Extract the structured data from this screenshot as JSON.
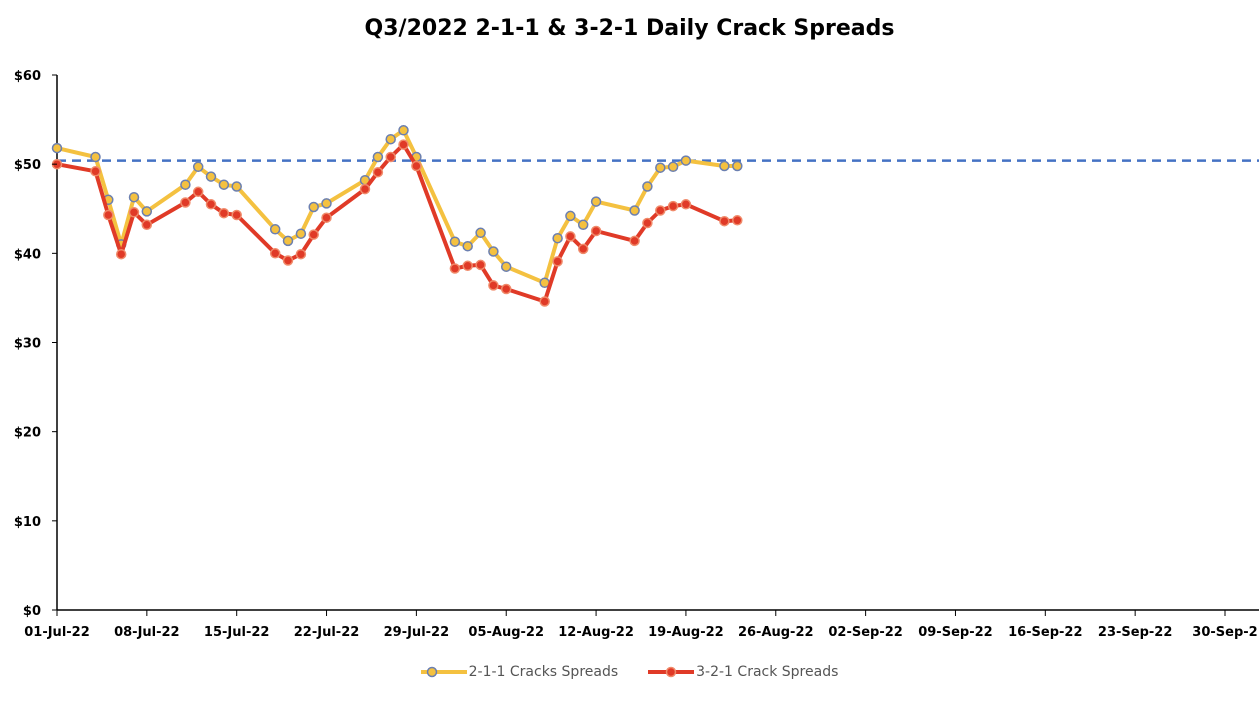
{
  "chart_data": {
    "type": "line",
    "title": "Q3/2022 2-1-1 & 3-2-1 Daily Crack Spreads",
    "xlabel": "",
    "ylabel": "",
    "ylim": [
      0,
      60
    ],
    "xlim": [
      "2022-07-01",
      "2022-09-30"
    ],
    "y_ticks": [
      "$0",
      "$10",
      "$20",
      "$30",
      "$40",
      "$50",
      "$60"
    ],
    "x_ticks": [
      {
        "date": "2022-07-01",
        "label": "01-Jul-22"
      },
      {
        "date": "2022-07-08",
        "label": "08-Jul-22"
      },
      {
        "date": "2022-07-15",
        "label": "15-Jul-22"
      },
      {
        "date": "2022-07-22",
        "label": "22-Jul-22"
      },
      {
        "date": "2022-07-29",
        "label": "29-Jul-22"
      },
      {
        "date": "2022-08-05",
        "label": "05-Aug-22"
      },
      {
        "date": "2022-08-12",
        "label": "12-Aug-22"
      },
      {
        "date": "2022-08-19",
        "label": "19-Aug-22"
      },
      {
        "date": "2022-08-26",
        "label": "26-Aug-22"
      },
      {
        "date": "2022-09-02",
        "label": "02-Sep-22"
      },
      {
        "date": "2022-09-09",
        "label": "09-Sep-22"
      },
      {
        "date": "2022-09-16",
        "label": "16-Sep-22"
      },
      {
        "date": "2022-09-23",
        "label": "23-Sep-22"
      },
      {
        "date": "2022-09-30",
        "label": "30-Sep-2"
      }
    ],
    "reference_line": {
      "value": 50.4,
      "color": "#4472c4",
      "style": "dashed"
    },
    "grid": false,
    "legend_position": "bottom",
    "series": [
      {
        "name": "2-1-1 Cracks Spreads",
        "color": "#f4c140",
        "marker_color": "#6b7fb0",
        "points": [
          [
            "2022-07-01",
            51.8
          ],
          [
            "2022-07-04",
            50.8
          ],
          [
            "2022-07-05",
            46.0
          ],
          [
            "2022-07-06",
            41.0
          ],
          [
            "2022-07-07",
            46.3
          ],
          [
            "2022-07-08",
            44.7
          ],
          [
            "2022-07-11",
            47.7
          ],
          [
            "2022-07-12",
            49.7
          ],
          [
            "2022-07-13",
            48.6
          ],
          [
            "2022-07-14",
            47.7
          ],
          [
            "2022-07-15",
            47.5
          ],
          [
            "2022-07-18",
            42.7
          ],
          [
            "2022-07-19",
            41.4
          ],
          [
            "2022-07-20",
            42.2
          ],
          [
            "2022-07-21",
            45.2
          ],
          [
            "2022-07-22",
            45.6
          ],
          [
            "2022-07-25",
            48.2
          ],
          [
            "2022-07-26",
            50.8
          ],
          [
            "2022-07-27",
            52.8
          ],
          [
            "2022-07-28",
            53.8
          ],
          [
            "2022-07-29",
            50.8
          ],
          [
            "2022-08-01",
            41.3
          ],
          [
            "2022-08-02",
            40.8
          ],
          [
            "2022-08-03",
            42.3
          ],
          [
            "2022-08-04",
            40.2
          ],
          [
            "2022-08-05",
            38.5
          ],
          [
            "2022-08-08",
            36.7
          ],
          [
            "2022-08-09",
            41.7
          ],
          [
            "2022-08-10",
            44.2
          ],
          [
            "2022-08-11",
            43.2
          ],
          [
            "2022-08-12",
            45.8
          ],
          [
            "2022-08-15",
            44.8
          ],
          [
            "2022-08-16",
            47.5
          ],
          [
            "2022-08-17",
            49.6
          ],
          [
            "2022-08-18",
            49.7
          ],
          [
            "2022-08-19",
            50.4
          ],
          [
            "2022-08-22",
            49.8
          ],
          [
            "2022-08-23",
            49.8
          ]
        ]
      },
      {
        "name": "3-2-1 Crack Spreads",
        "color": "#e03a27",
        "marker_color": "#e03a27",
        "points": [
          [
            "2022-07-01",
            50.0
          ],
          [
            "2022-07-04",
            49.2
          ],
          [
            "2022-07-05",
            44.3
          ],
          [
            "2022-07-06",
            39.9
          ],
          [
            "2022-07-07",
            44.6
          ],
          [
            "2022-07-08",
            43.2
          ],
          [
            "2022-07-11",
            45.7
          ],
          [
            "2022-07-12",
            46.9
          ],
          [
            "2022-07-13",
            45.5
          ],
          [
            "2022-07-14",
            44.5
          ],
          [
            "2022-07-15",
            44.3
          ],
          [
            "2022-07-18",
            40.0
          ],
          [
            "2022-07-19",
            39.2
          ],
          [
            "2022-07-20",
            39.9
          ],
          [
            "2022-07-21",
            42.1
          ],
          [
            "2022-07-22",
            44.0
          ],
          [
            "2022-07-25",
            47.2
          ],
          [
            "2022-07-26",
            49.1
          ],
          [
            "2022-07-27",
            50.8
          ],
          [
            "2022-07-28",
            52.2
          ],
          [
            "2022-07-29",
            49.8
          ],
          [
            "2022-08-01",
            38.3
          ],
          [
            "2022-08-02",
            38.6
          ],
          [
            "2022-08-03",
            38.7
          ],
          [
            "2022-08-04",
            36.4
          ],
          [
            "2022-08-05",
            36.0
          ],
          [
            "2022-08-08",
            34.6
          ],
          [
            "2022-08-09",
            39.1
          ],
          [
            "2022-08-10",
            41.9
          ],
          [
            "2022-08-11",
            40.5
          ],
          [
            "2022-08-12",
            42.5
          ],
          [
            "2022-08-15",
            41.4
          ],
          [
            "2022-08-16",
            43.4
          ],
          [
            "2022-08-17",
            44.8
          ],
          [
            "2022-08-18",
            45.3
          ],
          [
            "2022-08-19",
            45.5
          ],
          [
            "2022-08-22",
            43.6
          ],
          [
            "2022-08-23",
            43.7
          ]
        ]
      }
    ]
  }
}
